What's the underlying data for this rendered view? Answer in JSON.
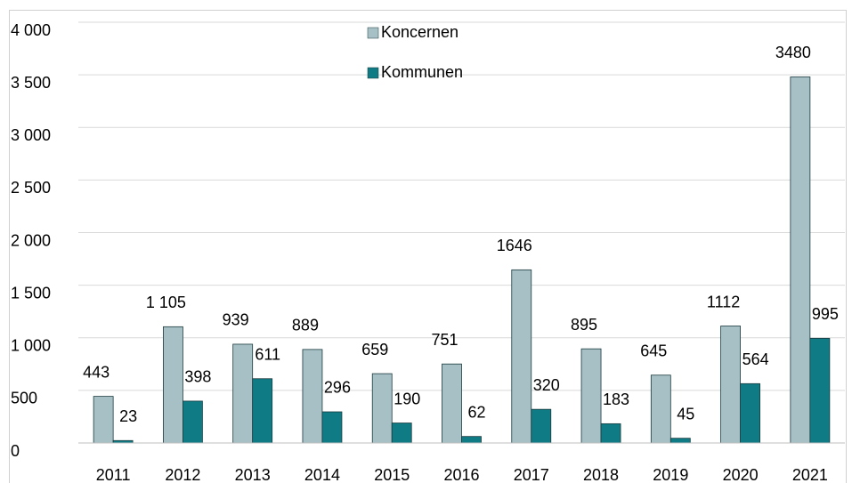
{
  "chart_data": {
    "type": "bar",
    "categories": [
      "2011",
      "2012",
      "2013",
      "2014",
      "2015",
      "2016",
      "2017",
      "2018",
      "2019",
      "2020",
      "2021"
    ],
    "series": [
      {
        "name": "Koncernen",
        "color": "#a7c0c6",
        "values": [
          443,
          1105,
          939,
          889,
          659,
          751,
          1646,
          895,
          645,
          1112,
          3480
        ],
        "value_labels": [
          "443",
          "1 105",
          "939",
          "889",
          "659",
          "751",
          "1646",
          "895",
          "645",
          "1112",
          "3480"
        ]
      },
      {
        "name": "Kommunen",
        "color": "#0f7b85",
        "values": [
          23,
          398,
          611,
          296,
          190,
          62,
          320,
          183,
          45,
          564,
          995
        ]
      }
    ],
    "ylim": [
      0,
      4000
    ],
    "yticks": [
      0,
      500,
      {
        "value": 1000,
        "label": "1 000"
      },
      {
        "value": 1500,
        "label": "1 500"
      },
      {
        "value": 2000,
        "label": "2 000"
      },
      {
        "value": 2500,
        "label": "2 500"
      },
      {
        "value": 3000,
        "label": "3 000"
      },
      {
        "value": 3500,
        "label": "3 500"
      },
      {
        "value": 4000,
        "label": "4 000"
      }
    ],
    "grid": true,
    "legend": "top"
  }
}
